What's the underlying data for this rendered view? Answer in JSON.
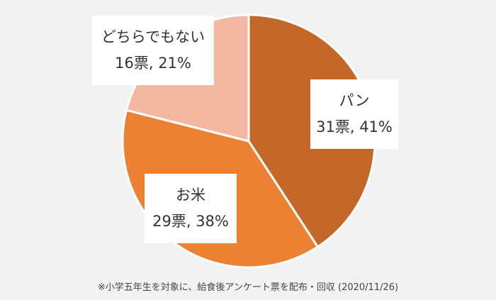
{
  "chart_data": {
    "type": "pie",
    "slices": [
      {
        "label": "パン",
        "votes_text": "31票, 41%",
        "votes": 31,
        "percent": 41,
        "color": "#c4682a"
      },
      {
        "label": "お米",
        "votes_text": "29票, 38%",
        "votes": 29,
        "percent": 38,
        "color": "#ed8133"
      },
      {
        "label": "どちらでもない",
        "votes_text": "16票, 21%",
        "votes": 16,
        "percent": 21,
        "color": "#f4b7a2"
      }
    ],
    "start": "12 o'clock",
    "direction": "clockwise"
  },
  "footnote": "※小学五年生を対象に、給食後アンケート票を配布・回収 (2020/11/26)"
}
